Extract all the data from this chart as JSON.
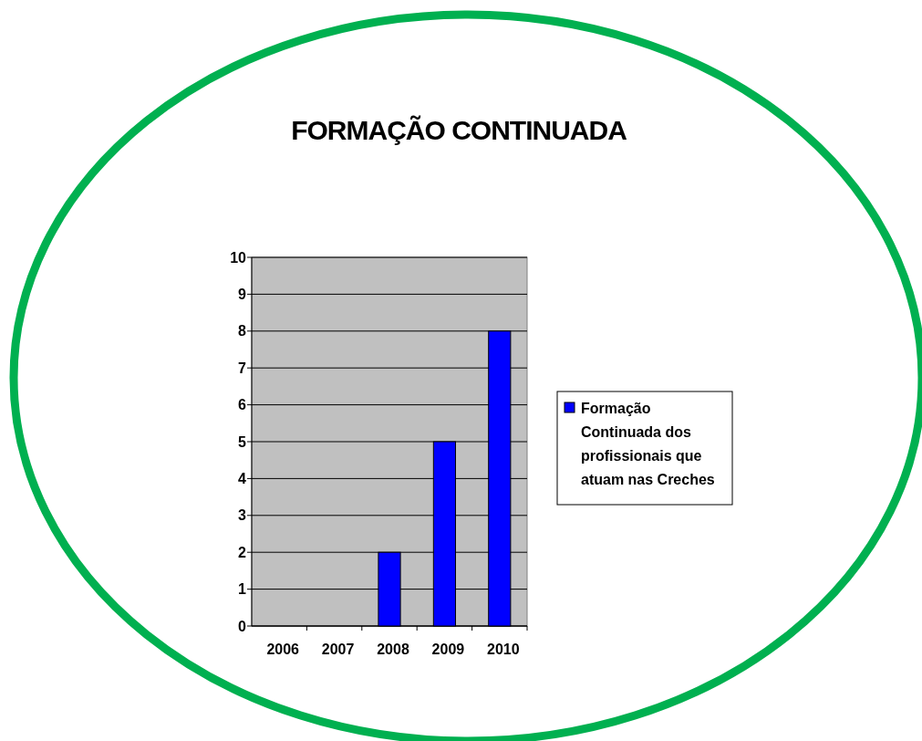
{
  "chart_data": {
    "type": "bar",
    "title": "FORMAÇÃO CONTINUADA",
    "categories": [
      "2006",
      "2007",
      "2008",
      "2009",
      "2010"
    ],
    "series": [
      {
        "name": "Formação Continuada dos profissionais que atuam nas Creches",
        "color": "#0000ff",
        "values": [
          0,
          0,
          2,
          5,
          8
        ]
      }
    ],
    "ylim": [
      0,
      10
    ],
    "yticks": [
      0,
      1,
      2,
      3,
      4,
      5,
      6,
      7,
      8,
      9,
      10
    ],
    "grid": "y",
    "legend": "right"
  }
}
